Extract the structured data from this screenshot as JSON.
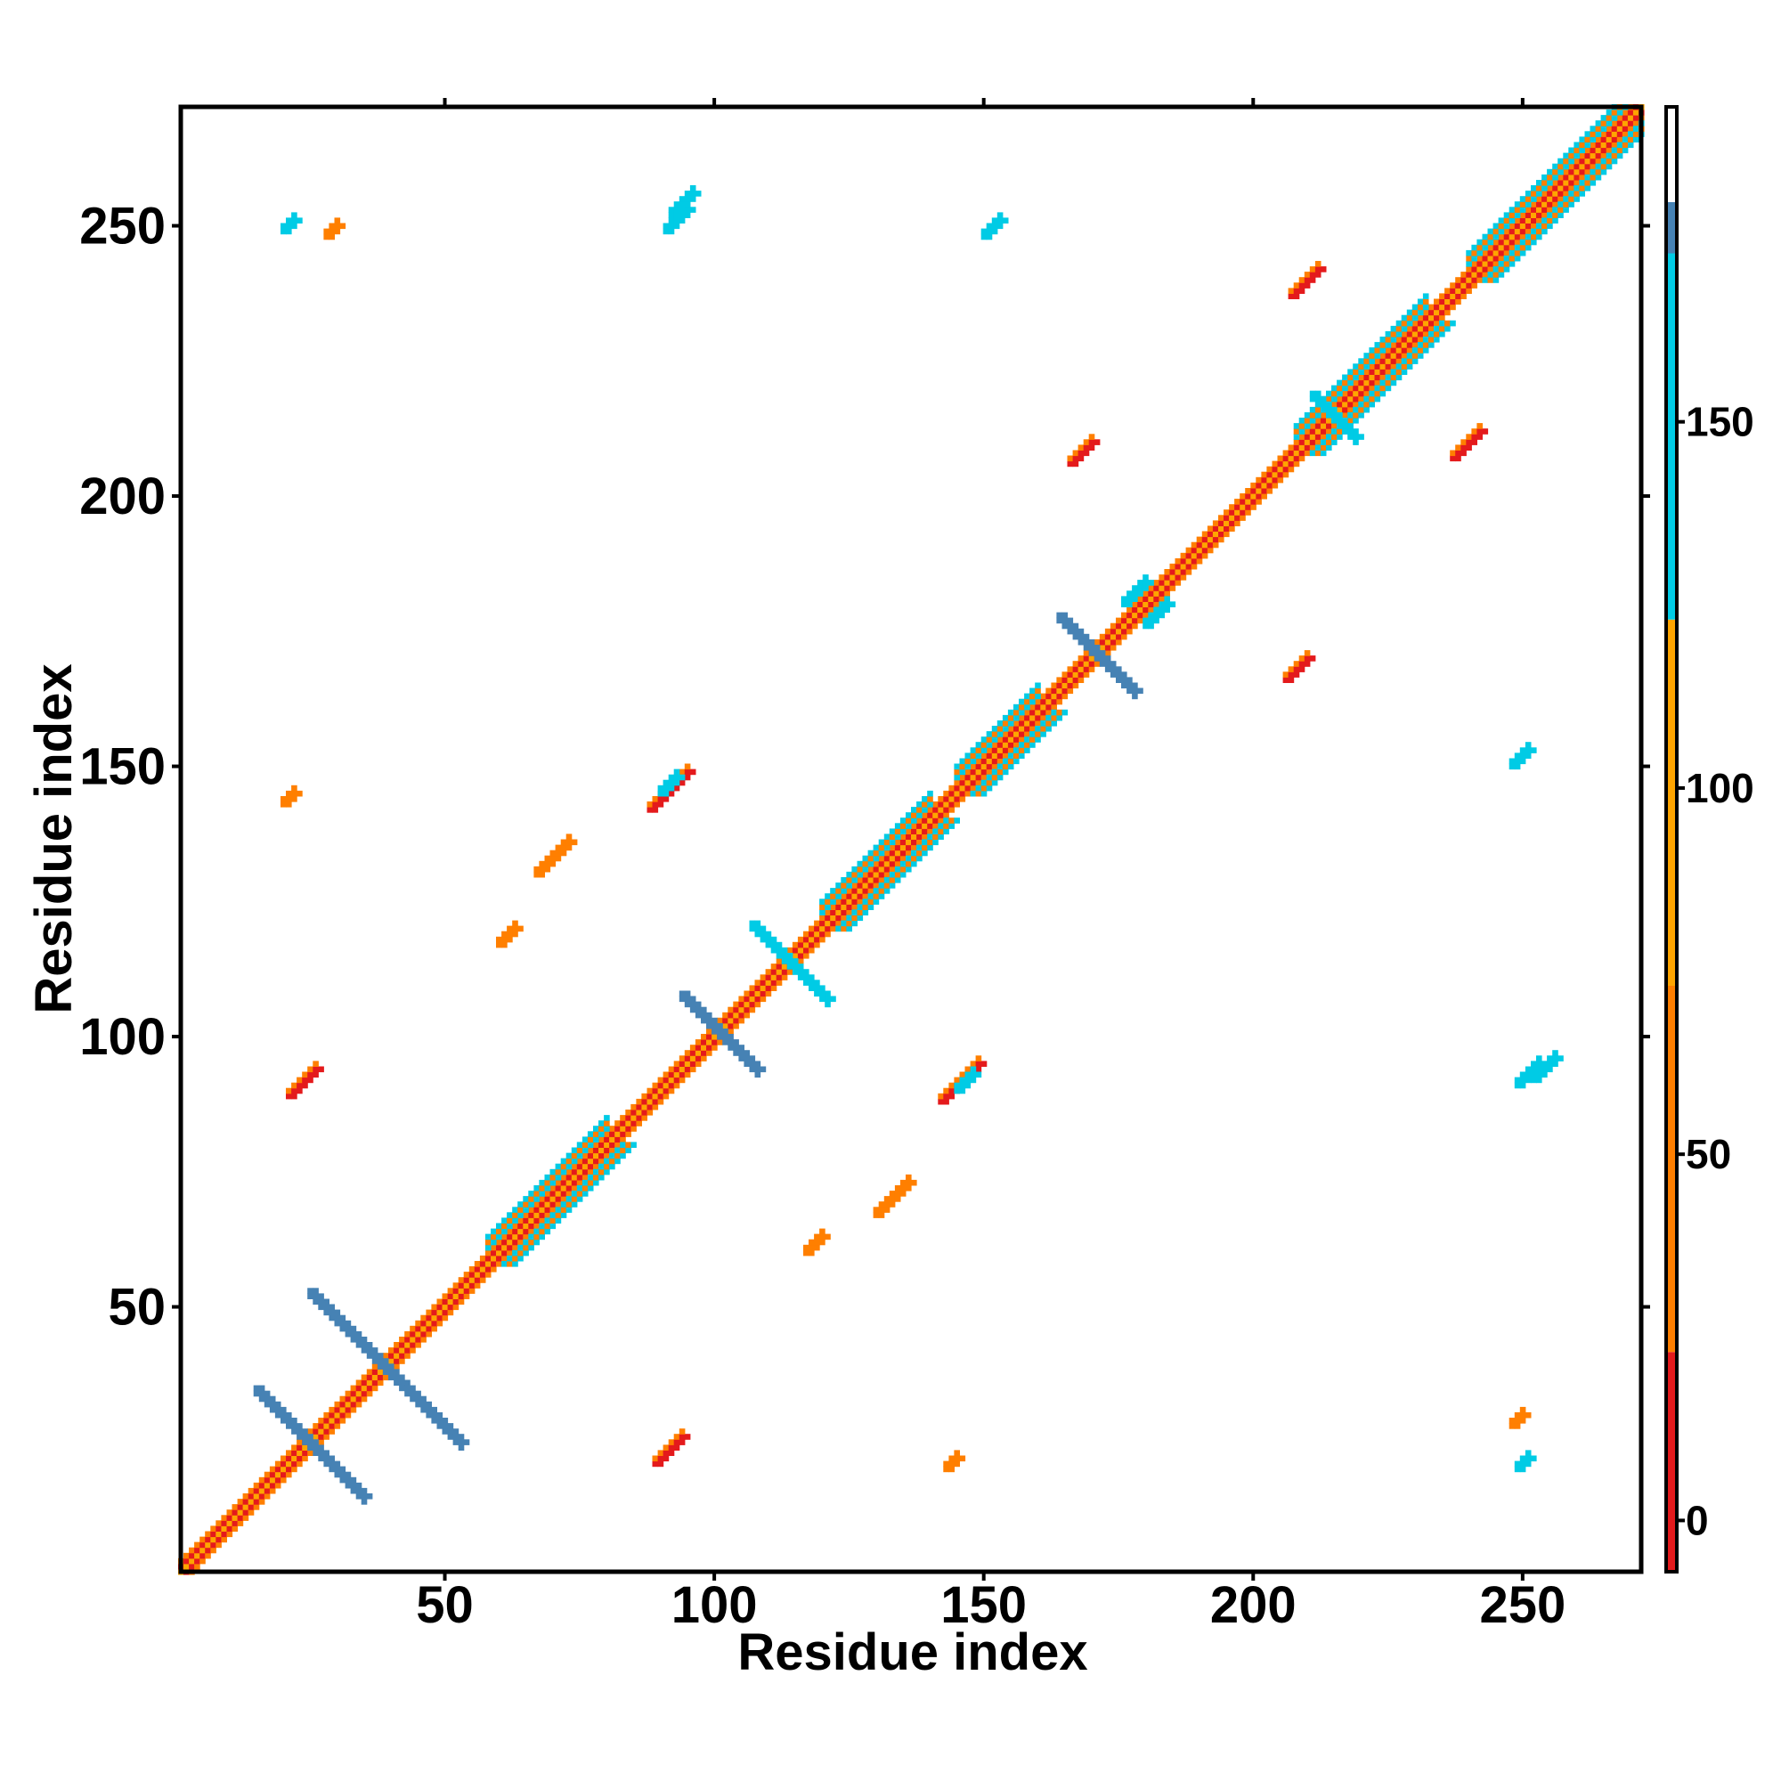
{
  "chart_data": {
    "type": "heatmap",
    "xlabel": "Residue index",
    "ylabel": "Residue index",
    "xlim": [
      1,
      272
    ],
    "ylim": [
      1,
      272
    ],
    "x_ticks": [
      50,
      100,
      150,
      200,
      250
    ],
    "y_ticks": [
      50,
      100,
      150,
      200,
      250
    ],
    "colorbar": {
      "ticks": [
        0,
        50,
        100,
        150
      ],
      "range": [
        -7,
        193
      ],
      "segments": [
        {
          "from": -7,
          "to": 23,
          "color": "#e41a1c"
        },
        {
          "from": 23,
          "to": 73,
          "color": "#ff7f00"
        },
        {
          "from": 73,
          "to": 123,
          "color": "#ffa500"
        },
        {
          "from": 123,
          "to": 173,
          "color": "#00cbe5"
        },
        {
          "from": 173,
          "to": 180,
          "color": "#4682b4"
        },
        {
          "from": 180,
          "to": 193,
          "color": "#ffffff"
        }
      ]
    },
    "features": [
      {
        "kind": "diagonal",
        "from": 1,
        "to": 272
      },
      {
        "kind": "helix_band",
        "from": 58,
        "to": 80,
        "color": "#00cbe5"
      },
      {
        "kind": "helix_band",
        "from": 120,
        "to": 140,
        "color": "#00cbe5"
      },
      {
        "kind": "helix_band",
        "from": 145,
        "to": 160,
        "color": "#00cbe5"
      },
      {
        "kind": "helix_band",
        "from": 208,
        "to": 232,
        "color": "#00cbe5"
      },
      {
        "kind": "helix_band",
        "from": 240,
        "to": 272,
        "color": "#00cbe5"
      },
      {
        "kind": "antiparallel",
        "x": 25,
        "y": 25,
        "half": 10,
        "color": "#4682b4"
      },
      {
        "kind": "antiparallel",
        "x": 39,
        "y": 39,
        "half": 14,
        "color": "#4682b4"
      },
      {
        "kind": "antiparallel",
        "x": 101,
        "y": 101,
        "half": 7,
        "color": "#4682b4"
      },
      {
        "kind": "antiparallel",
        "x": 114,
        "y": 114,
        "half": 7,
        "color": "#00cbe5"
      },
      {
        "kind": "antiparallel",
        "x": 171,
        "y": 171,
        "half": 7,
        "color": "#4682b4"
      },
      {
        "kind": "antiparallel",
        "x": 215,
        "y": 215,
        "half": 4,
        "color": "#00cbe5"
      },
      {
        "kind": "parallel",
        "x": 89,
        "y": 21,
        "len": 6,
        "color": "#e41a1c"
      },
      {
        "kind": "parallel",
        "x": 21,
        "y": 89,
        "len": 6,
        "color": "#e41a1c"
      },
      {
        "kind": "parallel",
        "x": 142,
        "y": 88,
        "len": 8,
        "color": "#e41a1c"
      },
      {
        "kind": "parallel",
        "x": 88,
        "y": 142,
        "len": 8,
        "color": "#e41a1c"
      },
      {
        "kind": "parallel",
        "x": 206,
        "y": 166,
        "len": 5,
        "color": "#e41a1c"
      },
      {
        "kind": "parallel",
        "x": 166,
        "y": 206,
        "len": 5,
        "color": "#e41a1c"
      },
      {
        "kind": "parallel",
        "x": 207,
        "y": 237,
        "len": 6,
        "color": "#e41a1c"
      },
      {
        "kind": "parallel",
        "x": 237,
        "y": 207,
        "len": 6,
        "color": "#e41a1c"
      },
      {
        "kind": "parallel",
        "x": 60,
        "y": 117,
        "len": 4,
        "color": "#ff7f00"
      },
      {
        "kind": "parallel",
        "x": 117,
        "y": 60,
        "len": 4,
        "color": "#ff7f00"
      },
      {
        "kind": "parallel",
        "x": 67,
        "y": 130,
        "len": 7,
        "color": "#ff7f00"
      },
      {
        "kind": "parallel",
        "x": 130,
        "y": 67,
        "len": 7,
        "color": "#ff7f00"
      },
      {
        "kind": "parallel",
        "x": 20,
        "y": 143,
        "len": 3,
        "color": "#ff7f00"
      },
      {
        "kind": "parallel",
        "x": 143,
        "y": 20,
        "len": 3,
        "color": "#ff7f00"
      },
      {
        "kind": "parallel",
        "x": 248,
        "y": 28,
        "len": 3,
        "color": "#ff7f00"
      },
      {
        "kind": "parallel",
        "x": 28,
        "y": 248,
        "len": 3,
        "color": "#ff7f00"
      },
      {
        "kind": "parallel",
        "x": 92,
        "y": 252,
        "len": 5,
        "color": "#00cbe5"
      },
      {
        "kind": "parallel",
        "x": 252,
        "y": 92,
        "len": 5,
        "color": "#00cbe5"
      },
      {
        "kind": "parallel",
        "x": 249,
        "y": 91,
        "len": 5,
        "color": "#00cbe5"
      },
      {
        "kind": "parallel",
        "x": 91,
        "y": 249,
        "len": 5,
        "color": "#00cbe5"
      },
      {
        "kind": "parallel",
        "x": 150,
        "y": 248,
        "len": 4,
        "color": "#00cbe5"
      },
      {
        "kind": "parallel",
        "x": 248,
        "y": 150,
        "len": 4,
        "color": "#00cbe5"
      },
      {
        "kind": "parallel",
        "x": 20,
        "y": 249,
        "len": 3,
        "color": "#00cbe5"
      },
      {
        "kind": "parallel",
        "x": 249,
        "y": 20,
        "len": 3,
        "color": "#00cbe5"
      },
      {
        "kind": "parallel",
        "x": 180,
        "y": 176,
        "len": 5,
        "color": "#00cbe5"
      },
      {
        "kind": "parallel",
        "x": 176,
        "y": 180,
        "len": 5,
        "color": "#00cbe5"
      },
      {
        "kind": "parallel",
        "x": 145,
        "y": 90,
        "len": 4,
        "color": "#00cbe5"
      },
      {
        "kind": "parallel",
        "x": 90,
        "y": 145,
        "len": 4,
        "color": "#00cbe5"
      }
    ]
  }
}
